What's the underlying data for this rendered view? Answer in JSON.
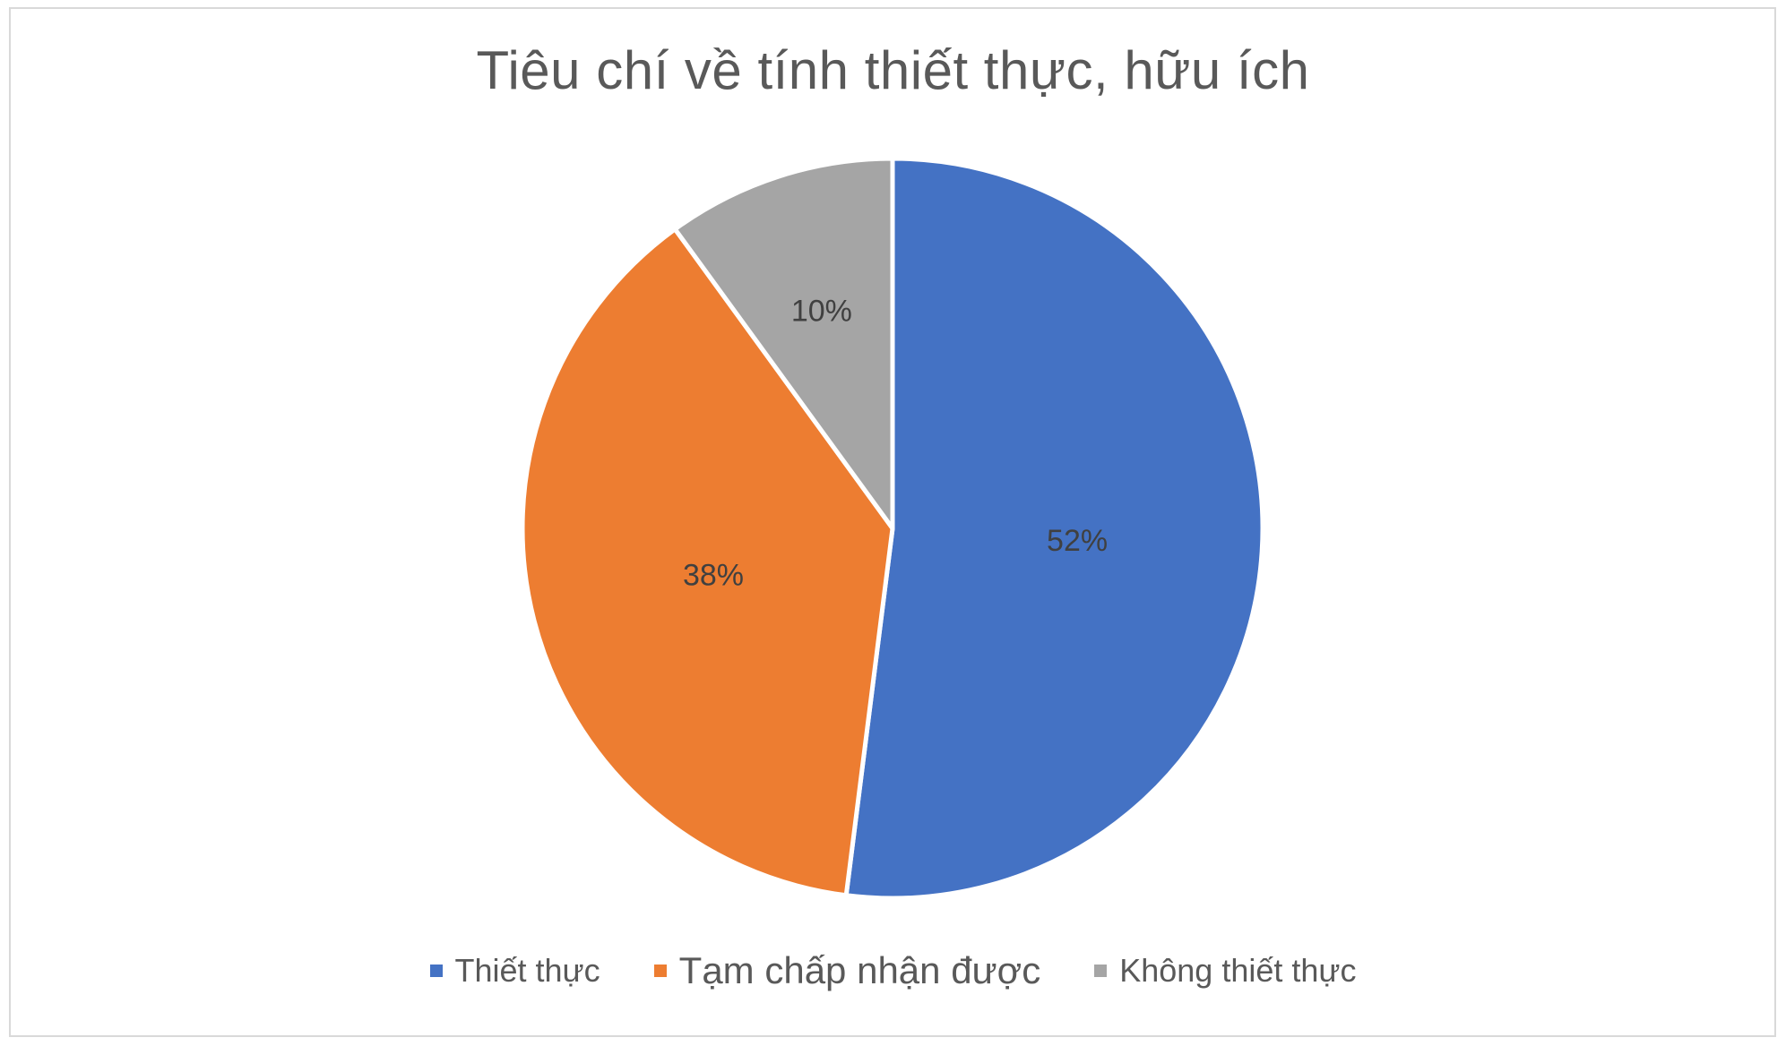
{
  "chart_data": {
    "type": "pie",
    "title": "Tiêu chí về tính thiết thực, hữu ích",
    "slices": [
      {
        "label": "Thiết thực",
        "value": 52,
        "display": "52%",
        "color": "#4472C4"
      },
      {
        "label": "Tạm chấp nhận được",
        "value": 38,
        "display": "38%",
        "color": "#ED7D31"
      },
      {
        "label": "Không thiết thực",
        "value": 10,
        "display": "10%",
        "color": "#A5A5A5"
      }
    ],
    "legend_position": "bottom"
  }
}
